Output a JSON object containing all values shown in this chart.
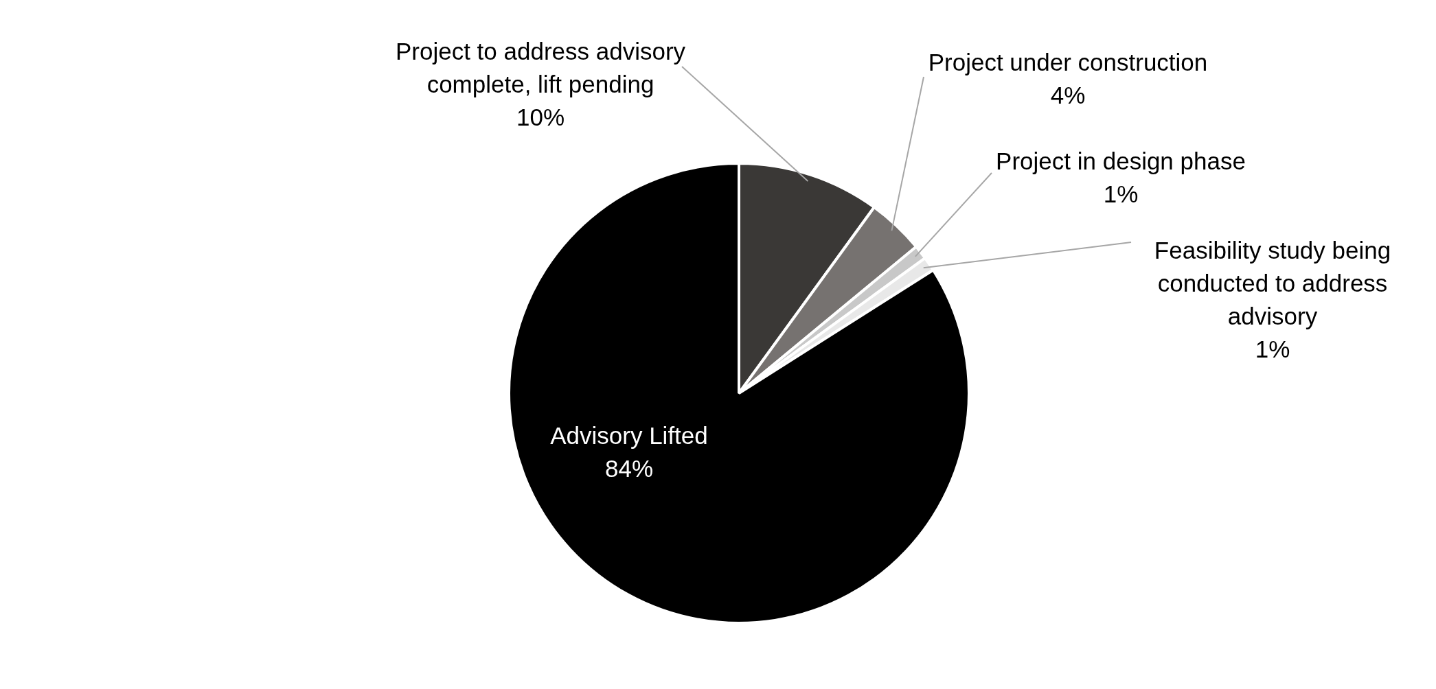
{
  "chart_data": {
    "type": "pie",
    "categories": [
      "Project to address advisory complete, lift pending",
      "Project under construction",
      "Project in design phase",
      "Feasibility study being conducted to address advisory",
      "Advisory Lifted"
    ],
    "values": [
      10,
      4,
      1,
      1,
      84
    ],
    "value_labels": [
      "10%",
      "4%",
      "1%",
      "1%",
      "84%"
    ],
    "colors": [
      "#3a3836",
      "#767270",
      "#c8c8c8",
      "#e8e8e8",
      "#000000"
    ],
    "legend": false
  }
}
